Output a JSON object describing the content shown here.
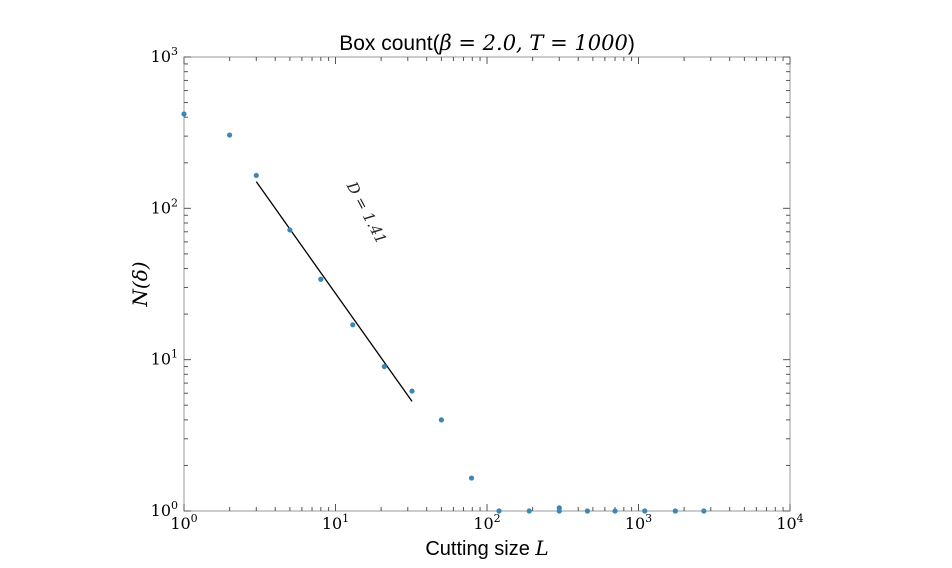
{
  "chart_data": {
    "type": "scatter",
    "title": "Box count(β = 2.0, T = 1000)",
    "title_parts": {
      "prefix": "Box count(",
      "math": "β = 2.0, T = 1000",
      "suffix": ")"
    },
    "xlabel": "Cutting size L",
    "xlabel_parts": {
      "text": "Cutting size ",
      "math": "L"
    },
    "ylabel": "N(δ)",
    "xscale": "log",
    "yscale": "log",
    "xlim": [
      1,
      10000
    ],
    "ylim": [
      1,
      1000
    ],
    "x_ticks": [
      {
        "base": "10",
        "exp": "0"
      },
      {
        "base": "10",
        "exp": "1"
      },
      {
        "base": "10",
        "exp": "2"
      },
      {
        "base": "10",
        "exp": "3"
      },
      {
        "base": "10",
        "exp": "4"
      }
    ],
    "y_ticks": [
      {
        "base": "10",
        "exp": "0"
      },
      {
        "base": "10",
        "exp": "1"
      },
      {
        "base": "10",
        "exp": "2"
      },
      {
        "base": "10",
        "exp": "3"
      }
    ],
    "grid": false,
    "marker_color": "#3a87b8",
    "line_color": "#000000",
    "points": [
      {
        "x": 1,
        "y": 420
      },
      {
        "x": 2,
        "y": 305
      },
      {
        "x": 3,
        "y": 165
      },
      {
        "x": 5,
        "y": 72
      },
      {
        "x": 8,
        "y": 34
      },
      {
        "x": 13,
        "y": 17
      },
      {
        "x": 21,
        "y": 9
      },
      {
        "x": 32,
        "y": 6.2
      },
      {
        "x": 50,
        "y": 4
      },
      {
        "x": 79,
        "y": 1.65
      },
      {
        "x": 120,
        "y": 1
      },
      {
        "x": 190,
        "y": 1
      },
      {
        "x": 300,
        "y": 1.05
      },
      {
        "x": 300,
        "y": 1
      },
      {
        "x": 460,
        "y": 1
      },
      {
        "x": 700,
        "y": 1
      },
      {
        "x": 1100,
        "y": 1
      },
      {
        "x": 1750,
        "y": 1
      },
      {
        "x": 2700,
        "y": 1
      }
    ],
    "fit_line": {
      "x": [
        3,
        32
      ],
      "y": [
        150,
        5.3
      ]
    },
    "annotation": {
      "text": "D = 1.41"
    }
  }
}
